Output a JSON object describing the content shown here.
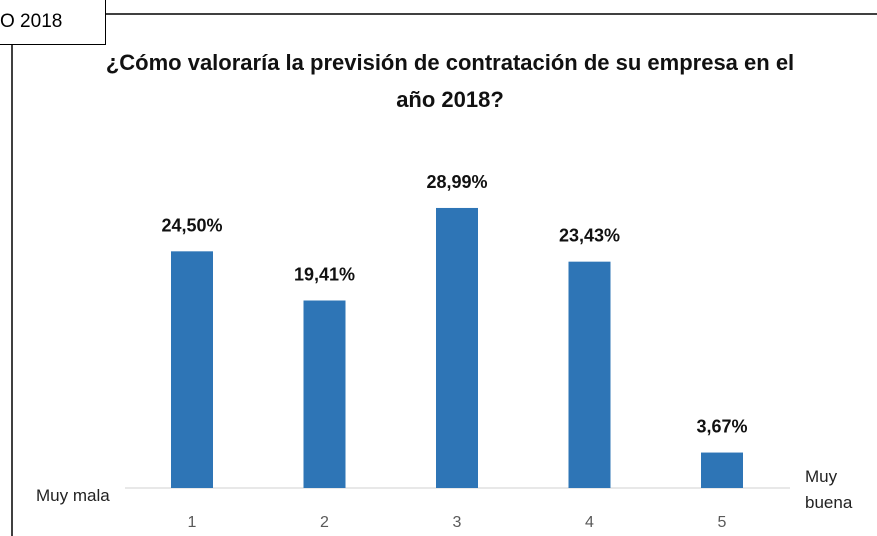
{
  "chart_data": {
    "type": "bar",
    "tab_label": "O 2018",
    "title": "¿Cómo valoraría la previsión de contratación de su empresa en el año 2018?",
    "low_label": "Muy mala",
    "high_label": "Muy buena",
    "categories": [
      "1",
      "2",
      "3",
      "4",
      "5"
    ],
    "values": [
      24.5,
      19.41,
      28.99,
      23.43,
      3.67
    ],
    "value_labels": [
      "24,50%",
      "19,41%",
      "28,99%",
      "23,43%",
      "3,67%"
    ],
    "color": "#2e75b6"
  }
}
